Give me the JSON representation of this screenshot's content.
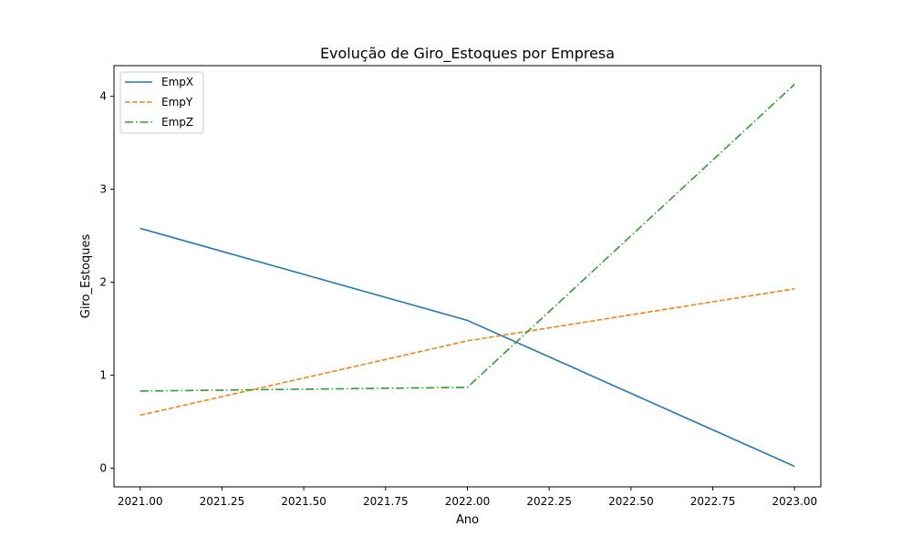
{
  "chart_data": {
    "type": "line",
    "title": "Evolução de Giro_Estoques por Empresa",
    "xlabel": "Ano",
    "ylabel": "Giro_Estoques",
    "x": [
      2021,
      2022,
      2023
    ],
    "xlim": [
      2020.92,
      2023.08
    ],
    "ylim": [
      -0.2,
      4.33
    ],
    "xticks": [
      2021.0,
      2021.25,
      2021.5,
      2021.75,
      2022.0,
      2022.25,
      2022.5,
      2022.75,
      2023.0
    ],
    "xtick_labels": [
      "2021.00",
      "2021.25",
      "2021.50",
      "2021.75",
      "2022.00",
      "2022.25",
      "2022.50",
      "2022.75",
      "2023.00"
    ],
    "yticks": [
      0,
      1,
      2,
      3,
      4
    ],
    "ytick_labels": [
      "0",
      "1",
      "2",
      "3",
      "4"
    ],
    "grid": false,
    "legend_position": "top-left",
    "series": [
      {
        "name": "EmpX",
        "values": [
          2.58,
          1.59,
          0.02
        ],
        "color": "#1f77b4",
        "linestyle": "solid"
      },
      {
        "name": "EmpY",
        "values": [
          0.57,
          1.37,
          1.93
        ],
        "color": "#ff7f0e",
        "linestyle": "dashed"
      },
      {
        "name": "EmpZ",
        "values": [
          0.83,
          0.87,
          4.13
        ],
        "color": "#2ca02c",
        "linestyle": "dashdot"
      }
    ]
  }
}
